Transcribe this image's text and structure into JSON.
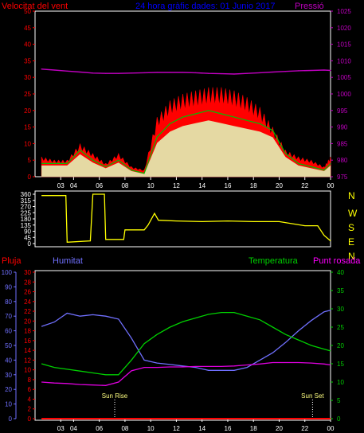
{
  "colors": {
    "wind_avg": "#ff0000",
    "wind_gust": "#00c000",
    "wind_speed": "#e0ffc0",
    "pressure": "#c000c0",
    "title": "#0000ff",
    "direction": "#ffff00",
    "temperature": "#00d000",
    "humidity": "#7070ff",
    "dewpoint": "#e000e0",
    "rain": "#ff0000",
    "axis_white": "#ffffff",
    "sun_label": "#ffff80"
  },
  "header": {
    "wind_label": "Velocitat del vent",
    "title": "24 hora gràfic dades: 01 Junio 2017",
    "pressure_label": "Pressió"
  },
  "direction_letters": [
    "N",
    "W",
    "S",
    "E",
    "N"
  ],
  "bottom_labels": {
    "rain": "Pluja",
    "humidity": "Humitat",
    "temperature": "Temperatura",
    "dewpoint": "Punt rosada",
    "sunrise": "Sun Rise",
    "sunset": "Sun Set"
  },
  "chart_data": [
    {
      "type": "line",
      "title": "24 hora gràfic dades: 01 Junio 2017",
      "x_ticks": [
        "03",
        "04",
        "06",
        "08",
        "10",
        "12",
        "14",
        "16",
        "18",
        "20",
        "22",
        "00"
      ],
      "y_left": {
        "label": "Velocitat del vent",
        "range": [
          0,
          50
        ],
        "ticks": [
          0,
          5,
          10,
          15,
          20,
          25,
          30,
          35,
          40,
          45,
          50
        ]
      },
      "y_right": {
        "label": "Pressió",
        "range": [
          975,
          1025
        ],
        "ticks": [
          975,
          980,
          985,
          990,
          995,
          1000,
          1005,
          1010,
          1015,
          1020,
          1025
        ]
      },
      "x": [
        1.5,
        2.5,
        3.5,
        4.5,
        5.5,
        6.5,
        7.5,
        8.5,
        9.5,
        10.5,
        11.5,
        12.5,
        13.5,
        14.5,
        15.5,
        16.5,
        17.5,
        18.5,
        19.5,
        20.5,
        21.5,
        22.5,
        23.5,
        24.0
      ],
      "series": [
        {
          "name": "Velocitat del vent",
          "axis": "left",
          "values": [
            6,
            5,
            5,
            10,
            7,
            4,
            7,
            3,
            2,
            18,
            23,
            25,
            26,
            27,
            27,
            26,
            24,
            21,
            15,
            8,
            6,
            5,
            3,
            6
          ]
        },
        {
          "name": "Ràfega",
          "axis": "left",
          "values": [
            4,
            4,
            4,
            8,
            5,
            3,
            5,
            2,
            1,
            12,
            16,
            18,
            19,
            20,
            19,
            18,
            17,
            16,
            14,
            7,
            4,
            3,
            2,
            4
          ]
        },
        {
          "name": "Pressió",
          "axis": "right",
          "values": [
            1007.5,
            1007.2,
            1006.9,
            1006.6,
            1006.3,
            1006.2,
            1006.2,
            1006.3,
            1006.4,
            1006.5,
            1006.5,
            1006.5,
            1006.4,
            1006.2,
            1006.1,
            1006.0,
            1006.2,
            1006.4,
            1006.6,
            1006.8,
            1007.0,
            1007.1,
            1007.2,
            1007.1
          ]
        }
      ]
    },
    {
      "type": "line",
      "y_left": {
        "range": [
          0,
          360
        ],
        "ticks": [
          0,
          45,
          90,
          135,
          180,
          225,
          270,
          315,
          360
        ]
      },
      "x": [
        1.5,
        3.4,
        3.5,
        5.3,
        5.5,
        6.4,
        6.5,
        7.9,
        8.0,
        9.5,
        9.8,
        10.3,
        10.6,
        12,
        14,
        16,
        18,
        20,
        22,
        23.0,
        23.5,
        24.0
      ],
      "series": [
        {
          "name": "Direcció",
          "values": [
            350,
            350,
            10,
            20,
            360,
            360,
            30,
            30,
            100,
            100,
            135,
            220,
            170,
            165,
            160,
            165,
            160,
            160,
            130,
            130,
            60,
            20
          ]
        }
      ]
    },
    {
      "type": "line",
      "y_axes": {
        "rain": {
          "label": "Pluja",
          "range": [
            0,
            30
          ],
          "ticks": [
            0,
            2,
            4,
            6,
            8,
            10,
            12,
            14,
            16,
            18,
            20,
            22,
            24,
            26,
            28,
            30
          ]
        },
        "humidity": {
          "label": "Humitat",
          "range": [
            0,
            100
          ],
          "ticks": [
            0,
            10,
            20,
            30,
            40,
            50,
            60,
            70,
            80,
            90,
            100
          ]
        },
        "temperature": {
          "label": "Temperatura",
          "range": [
            0,
            40
          ],
          "ticks": [
            0,
            5,
            10,
            15,
            20,
            25,
            30,
            35,
            40
          ]
        }
      },
      "x_ticks": [
        "03",
        "04",
        "06",
        "08",
        "10",
        "12",
        "14",
        "16",
        "18",
        "20",
        "22",
        "00"
      ],
      "x": [
        1.5,
        2.5,
        3.5,
        4.5,
        5.5,
        6.5,
        7.5,
        8.5,
        9.5,
        10.5,
        11.5,
        12.5,
        13.5,
        14.5,
        15.5,
        16.5,
        17.5,
        18.5,
        19.5,
        20.5,
        21.5,
        22.5,
        23.5,
        24.0
      ],
      "series": [
        {
          "name": "Humitat",
          "axis": "humidity",
          "values": [
            63,
            66,
            72,
            70,
            71,
            70,
            68,
            55,
            40,
            38,
            37,
            36,
            35,
            33,
            33,
            33,
            35,
            40,
            45,
            52,
            60,
            67,
            73,
            74
          ]
        },
        {
          "name": "Temperatura",
          "axis": "temperature",
          "values": [
            15,
            14,
            13.5,
            13,
            12.5,
            12,
            12,
            16,
            20.5,
            23,
            25,
            26.5,
            27.5,
            28.5,
            29,
            29,
            28,
            27,
            25,
            23,
            21.5,
            20,
            19,
            18.5
          ]
        },
        {
          "name": "Punt rosada",
          "axis": "rain",
          "values": [
            7.5,
            7.3,
            7.2,
            7.0,
            6.9,
            6.8,
            7.5,
            9.8,
            10.5,
            10.5,
            10.6,
            10.6,
            10.7,
            10.7,
            10.7,
            10.8,
            11.0,
            11.2,
            11.5,
            11.5,
            11.5,
            11.4,
            11.2,
            11.0
          ]
        },
        {
          "name": "Pluja",
          "axis": "rain",
          "values": [
            0,
            0,
            0,
            0,
            0,
            0,
            0,
            0,
            0,
            0,
            0,
            0,
            0,
            0,
            0,
            0,
            0,
            0,
            0,
            0,
            0,
            0,
            0,
            0
          ]
        }
      ],
      "annotations": [
        {
          "text": "Sun Rise",
          "x": 7.2
        },
        {
          "text": "Sun Set",
          "x": 22.6
        }
      ]
    }
  ]
}
